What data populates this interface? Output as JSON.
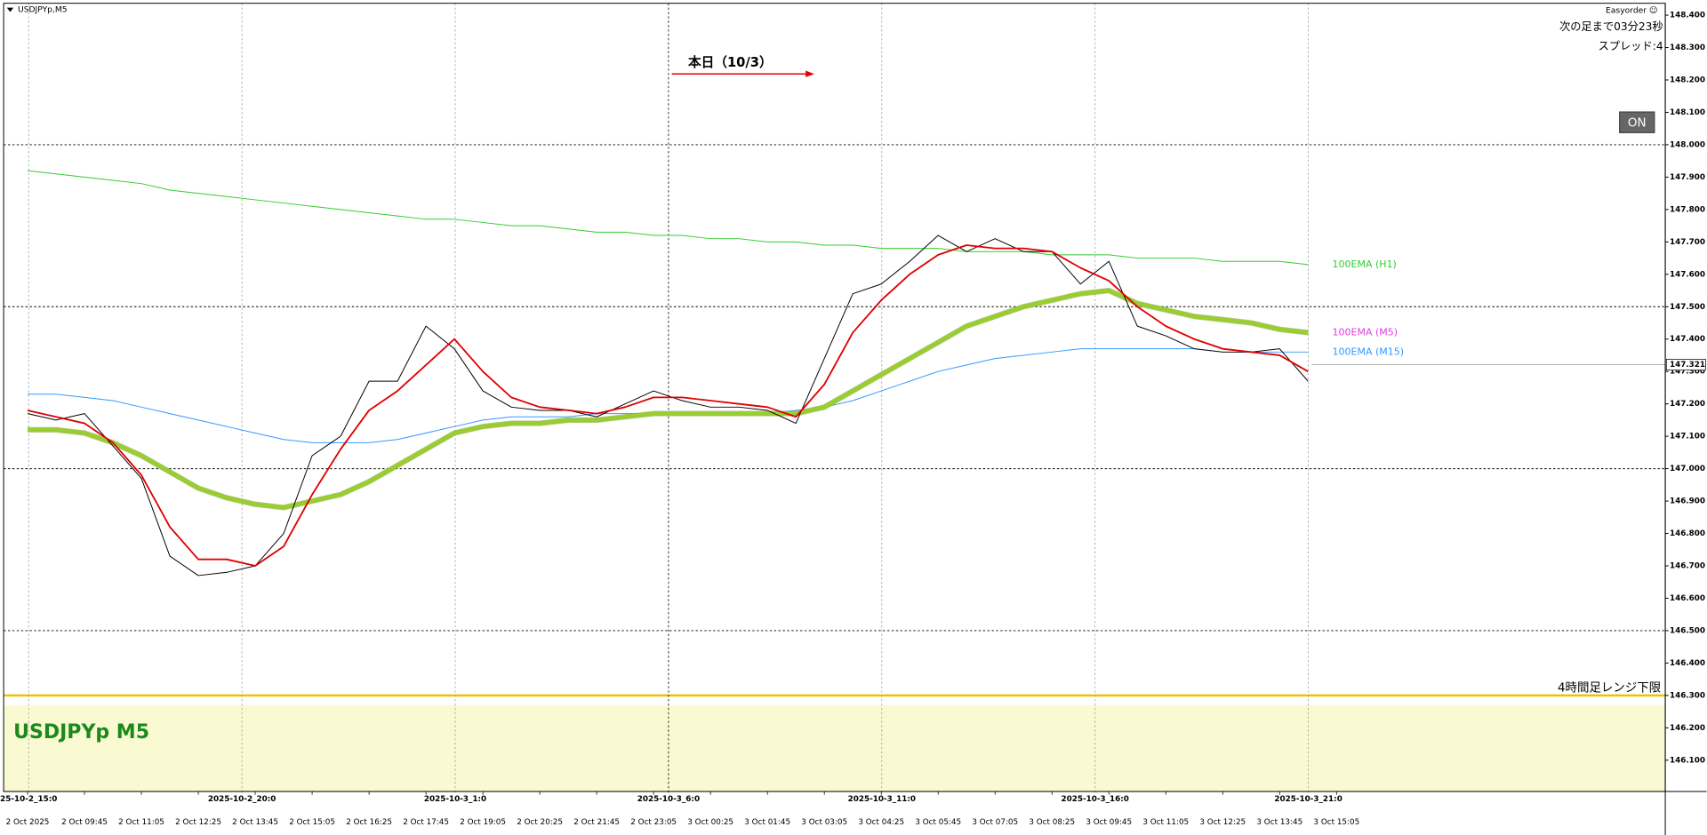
{
  "chart_data": {
    "type": "line",
    "title": "USDJPYp,M5",
    "watermark": "USDJPYp M5",
    "info": {
      "broker": "Easyorder ☺",
      "countdown": "次の足まで03分23秒",
      "spread": "スプレッド:4"
    },
    "button": "ON",
    "annotation": {
      "text": "本日（10/3）",
      "color": "#e00000"
    },
    "categories": [
      "2 Oct 2025",
      null,
      "2 Oct 09:45",
      null,
      "2 Oct 11:05",
      null,
      "2 Oct 12:25",
      null,
      "2 Oct 13:45",
      null,
      "2 Oct 15:05",
      null,
      "2 Oct 16:25",
      null,
      "2 Oct 17:45",
      null,
      "2 Oct 19:05",
      null,
      "2 Oct 20:25",
      null,
      "2 Oct 21:45",
      null,
      "2 Oct 23:05",
      null,
      "3 Oct 00:25",
      null,
      "3 Oct 01:45",
      null,
      "3 Oct 03:05",
      null,
      "3 Oct 04:25",
      null,
      "3 Oct 05:45",
      null,
      "3 Oct 07:05",
      null,
      "3 Oct 08:25",
      null,
      "3 Oct 09:45",
      null,
      "3 Oct 11:05",
      null,
      "3 Oct 12:25",
      null,
      "3 Oct 13:45",
      null,
      "3 Oct 15:05"
    ],
    "session_labels": [
      "25-10-2_15:0",
      "2025-10-2_20:0",
      "2025-10-3_1:0",
      "2025-10-3_6:0",
      "2025-10-3_11:0",
      "2025-10-3_16:0",
      "2025-10-3_21:0"
    ],
    "series": [
      {
        "color": "#33cc33",
        "width": 0.8,
        "name": "100EMA (H1)",
        "label_color": "#33cc33",
        "values": [
          147.92,
          147.91,
          147.9,
          147.89,
          147.88,
          147.86,
          147.85,
          147.84,
          147.83,
          147.82,
          147.81,
          147.8,
          147.79,
          147.78,
          147.77,
          147.77,
          147.76,
          147.75,
          147.75,
          147.74,
          147.73,
          147.73,
          147.72,
          147.72,
          147.71,
          147.71,
          147.7,
          147.7,
          147.69,
          147.69,
          147.68,
          147.68,
          147.68,
          147.67,
          147.67,
          147.67,
          147.66,
          147.66,
          147.66,
          147.65,
          147.65,
          147.65,
          147.64,
          147.64,
          147.64,
          147.63,
          null
        ]
      },
      {
        "color": "#3399ff",
        "width": 0.8,
        "name": "100EMA (M15)",
        "label_color": "#3399ff",
        "values": [
          147.23,
          147.23,
          147.22,
          147.21,
          147.19,
          147.17,
          147.15,
          147.13,
          147.11,
          147.09,
          147.08,
          147.08,
          147.08,
          147.09,
          147.11,
          147.13,
          147.15,
          147.16,
          147.16,
          147.16,
          147.17,
          147.17,
          147.17,
          147.17,
          147.17,
          147.17,
          147.17,
          147.18,
          147.19,
          147.21,
          147.24,
          147.27,
          147.3,
          147.32,
          147.34,
          147.35,
          147.36,
          147.37,
          147.37,
          147.37,
          147.37,
          147.37,
          147.36,
          147.36,
          147.36,
          147.36,
          null
        ]
      },
      {
        "color": "#9acd32",
        "width": 4,
        "name": "100EMA (M5)",
        "label_color": "#e040e0",
        "values": [
          147.12,
          147.12,
          147.11,
          147.08,
          147.04,
          146.99,
          146.94,
          146.91,
          146.89,
          146.88,
          146.9,
          146.92,
          146.96,
          147.01,
          147.06,
          147.11,
          147.13,
          147.14,
          147.14,
          147.15,
          147.15,
          147.16,
          147.17,
          147.17,
          147.17,
          147.17,
          147.17,
          147.17,
          147.19,
          147.24,
          147.29,
          147.34,
          147.39,
          147.44,
          147.47,
          147.5,
          147.52,
          147.54,
          147.55,
          147.51,
          147.49,
          147.47,
          147.46,
          147.45,
          147.43,
          147.42,
          null
        ]
      },
      {
        "color": "#000000",
        "width": 0.8,
        "values": [
          147.17,
          147.15,
          147.17,
          147.07,
          146.97,
          146.73,
          146.67,
          146.68,
          146.7,
          146.8,
          147.04,
          147.1,
          147.27,
          147.27,
          147.44,
          147.37,
          147.24,
          147.19,
          147.18,
          147.18,
          147.16,
          147.2,
          147.24,
          147.21,
          147.19,
          147.19,
          147.18,
          147.14,
          147.34,
          147.54,
          147.57,
          147.64,
          147.72,
          147.67,
          147.71,
          147.67,
          147.67,
          147.57,
          147.64,
          147.44,
          147.41,
          147.37,
          147.36,
          147.36,
          147.37,
          147.27,
          null
        ]
      },
      {
        "color": "#e00000",
        "width": 1.5,
        "values": [
          147.18,
          147.16,
          147.14,
          147.08,
          146.98,
          146.82,
          146.72,
          146.72,
          146.7,
          146.76,
          146.92,
          147.06,
          147.18,
          147.24,
          147.32,
          147.4,
          147.3,
          147.22,
          147.19,
          147.18,
          147.17,
          147.19,
          147.22,
          147.22,
          147.21,
          147.2,
          147.19,
          147.16,
          147.26,
          147.42,
          147.52,
          147.6,
          147.66,
          147.69,
          147.68,
          147.68,
          147.67,
          147.62,
          147.58,
          147.5,
          147.44,
          147.4,
          147.37,
          147.36,
          147.35,
          147.3,
          null
        ]
      }
    ],
    "ylim": [
      146.0,
      148.43
    ],
    "yticks": [
      {
        "value": 146.1,
        "label": "146.100"
      },
      {
        "value": 146.2,
        "label": "146.200"
      },
      {
        "value": 146.3,
        "label": "146.300"
      },
      {
        "value": 146.4,
        "label": "146.400"
      },
      {
        "value": 146.5,
        "label": "146.500"
      },
      {
        "value": 146.6,
        "label": "146.600"
      },
      {
        "value": 146.7,
        "label": "146.700"
      },
      {
        "value": 146.8,
        "label": "146.800"
      },
      {
        "value": 146.9,
        "label": "146.900"
      },
      {
        "value": 147.0,
        "label": "147.000"
      },
      {
        "value": 147.1,
        "label": "147.100"
      },
      {
        "value": 147.2,
        "label": "147.200"
      },
      {
        "value": 147.3,
        "label": "147.300"
      },
      {
        "value": 147.4,
        "label": "147.400"
      },
      {
        "value": 147.5,
        "label": "147.500"
      },
      {
        "value": 147.6,
        "label": "147.600"
      },
      {
        "value": 147.7,
        "label": "147.700"
      },
      {
        "value": 147.8,
        "label": "147.800"
      },
      {
        "value": 147.9,
        "label": "147.900"
      },
      {
        "value": 148.0,
        "label": "148.000"
      },
      {
        "value": 148.1,
        "label": "148.100"
      },
      {
        "value": 148.2,
        "label": "148.200"
      },
      {
        "value": 148.3,
        "label": "148.300"
      },
      {
        "value": 148.4,
        "label": "148.400"
      }
    ],
    "level_lines": [
      148.0,
      147.5,
      147.0,
      146.5
    ],
    "range_low": {
      "value": 146.3,
      "label": "4時間足レンジ下限",
      "color": "#f0c000",
      "zone_color": "#fafad2"
    },
    "current_price": 147.321
  }
}
